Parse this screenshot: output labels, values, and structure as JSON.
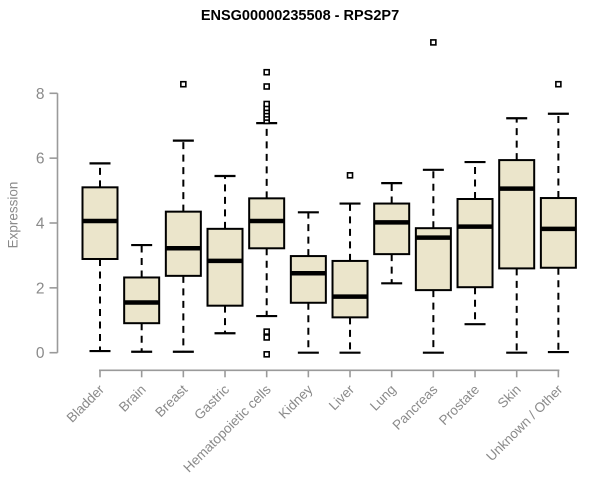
{
  "chart_data": {
    "type": "box",
    "title": "ENSG00000235508 - RPS2P7",
    "ylabel": "Expression",
    "xlabel": "",
    "ytick_values": [
      0,
      2,
      4,
      6,
      8
    ],
    "ytick_labels": [
      "0",
      "2",
      "4",
      "6",
      "8"
    ],
    "ylim": [
      0,
      8
    ],
    "grid": false,
    "legend": "none",
    "colors": {
      "box_fill": "#ebe5cb",
      "box_stroke": "#000000",
      "median": "#000000",
      "whisker": "#000000",
      "axis_line": "#9a9a9a",
      "tick_text": "#8a8a8a",
      "title_text": "#000000"
    },
    "categories": [
      "Bladder",
      "Brain",
      "Breast",
      "Gastric",
      "Hematopoietic cells",
      "Kidney",
      "Liver",
      "Lung",
      "Pancreas",
      "Prostate",
      "Skin",
      "Unknown / Other"
    ],
    "boxes": [
      {
        "category": "Bladder",
        "whisker_low": 0.05,
        "q1": 2.89,
        "median": 4.06,
        "q3": 5.1,
        "whisker_high": 5.84,
        "outliers": []
      },
      {
        "category": "Brain",
        "whisker_low": 0.03,
        "q1": 0.91,
        "median": 1.55,
        "q3": 2.32,
        "whisker_high": 3.32,
        "outliers": []
      },
      {
        "category": "Breast",
        "whisker_low": 0.03,
        "q1": 2.37,
        "median": 3.22,
        "q3": 4.35,
        "whisker_high": 6.54,
        "outliers": [
          8.28
        ]
      },
      {
        "category": "Gastric",
        "whisker_low": 0.6,
        "q1": 1.45,
        "median": 2.83,
        "q3": 3.82,
        "whisker_high": 5.45,
        "outliers": []
      },
      {
        "category": "Hematopoietic cells",
        "whisker_low": 1.13,
        "q1": 3.22,
        "median": 4.06,
        "q3": 4.76,
        "whisker_high": 7.08,
        "outliers": [
          7.15,
          7.25,
          7.35,
          7.45,
          7.55,
          7.67,
          8.21,
          8.65,
          0.65,
          0.47,
          -0.05
        ]
      },
      {
        "category": "Kidney",
        "whisker_low": 0.0,
        "q1": 1.54,
        "median": 2.45,
        "q3": 2.98,
        "whisker_high": 4.33,
        "outliers": []
      },
      {
        "category": "Liver",
        "whisker_low": 0.0,
        "q1": 1.09,
        "median": 1.73,
        "q3": 2.83,
        "whisker_high": 4.6,
        "outliers": [
          5.47
        ]
      },
      {
        "category": "Lung",
        "whisker_low": 2.14,
        "q1": 3.04,
        "median": 4.02,
        "q3": 4.6,
        "whisker_high": 5.23,
        "outliers": []
      },
      {
        "category": "Pancreas",
        "whisker_low": 0.0,
        "q1": 1.93,
        "median": 3.55,
        "q3": 3.84,
        "whisker_high": 5.64,
        "outliers": [
          9.57
        ]
      },
      {
        "category": "Prostate",
        "whisker_low": 0.88,
        "q1": 2.02,
        "median": 3.89,
        "q3": 4.74,
        "whisker_high": 5.88,
        "outliers": []
      },
      {
        "category": "Skin",
        "whisker_low": 0.0,
        "q1": 2.6,
        "median": 5.06,
        "q3": 5.94,
        "whisker_high": 7.23,
        "outliers": []
      },
      {
        "category": "Unknown / Other",
        "whisker_low": 0.02,
        "q1": 2.62,
        "median": 3.82,
        "q3": 4.77,
        "whisker_high": 7.37,
        "outliers": [
          8.28
        ]
      }
    ]
  }
}
